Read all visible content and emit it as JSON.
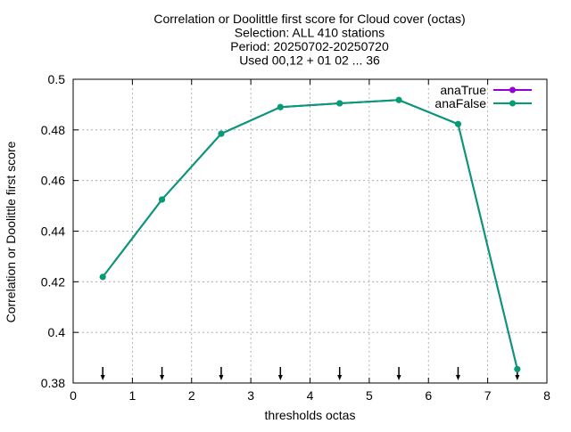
{
  "chart_data": {
    "type": "line",
    "title_lines": [
      "Correlation or Doolittle first score  for Cloud cover (octas)",
      "Selection: ALL    410 stations",
      "Period: 20250702-20250720",
      "Used 00,12 + 01 02 ... 36"
    ],
    "xlabel": "thresholds octas",
    "ylabel": "Correlation or Doolittle first score",
    "xlim": [
      0,
      8
    ],
    "ylim": [
      0.38,
      0.5
    ],
    "xticks": [
      0,
      1,
      2,
      3,
      4,
      5,
      6,
      7,
      8
    ],
    "xtick_labels": [
      "0",
      "1",
      "2",
      "3",
      "4",
      "5",
      "6",
      "7",
      "8"
    ],
    "yticks": [
      0.38,
      0.4,
      0.42,
      0.44,
      0.46,
      0.48,
      0.5
    ],
    "ytick_labels": [
      "0.38",
      "0.4",
      "0.42",
      "0.44",
      "0.46",
      "0.48",
      "0.5"
    ],
    "grid": true,
    "legend_position": "top-right",
    "x": [
      0.5,
      1.5,
      2.5,
      3.5,
      4.5,
      5.5,
      6.5,
      7.5
    ],
    "series": [
      {
        "name": "anaTrue",
        "color": "#9400d3",
        "values": [
          0.4219,
          0.4525,
          0.4785,
          0.489,
          0.4905,
          0.4918,
          0.4823,
          0.3855
        ]
      },
      {
        "name": "anaFalse",
        "color": "#009e73",
        "values": [
          0.4219,
          0.4525,
          0.4785,
          0.489,
          0.4905,
          0.4918,
          0.4823,
          0.3855
        ]
      }
    ],
    "arrow_markers_x": [
      0.5,
      1.5,
      2.5,
      3.5,
      4.5,
      5.5,
      6.5,
      7.5
    ]
  }
}
